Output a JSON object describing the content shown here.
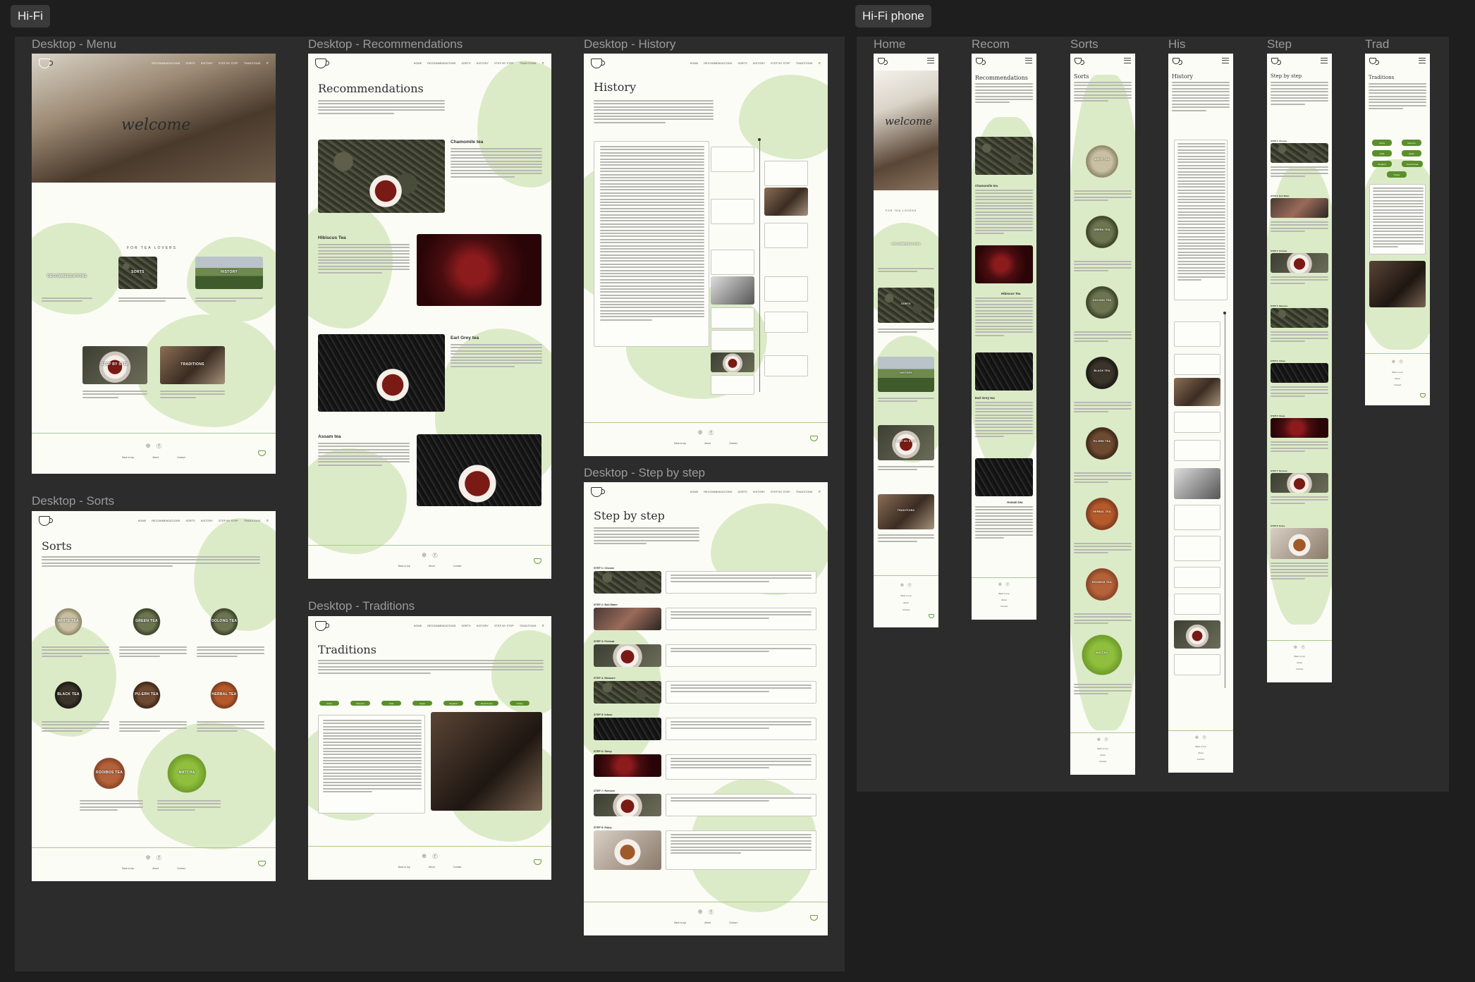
{
  "sections": {
    "hifi": "Hi-Fi",
    "phone": "Hi-Fi phone"
  },
  "frame_labels": {
    "menu": "Desktop - Menu",
    "recommendations": "Desktop - Recommendations",
    "history": "Desktop - History",
    "sorts": "Desktop - Sorts",
    "traditions": "Desktop - Traditions",
    "stepbystep": "Desktop - Step by step",
    "p_home": "Home",
    "p_recom": "Recom",
    "p_sorts": "Sorts",
    "p_his": "His",
    "p_step": "Step",
    "p_trad": "Trad"
  },
  "nav": {
    "home": "HOME",
    "recommendations": "RECOMMENDATIONS",
    "sorts": "SORTS",
    "history": "HISTORY",
    "stepbystep": "STEP BY STEP",
    "traditions": "TRADITIONS"
  },
  "menu_page": {
    "welcome": "welcome",
    "tagline": "FOR TEA LOVERS",
    "tiles": {
      "recommendations": "RECOMMENDATIONS",
      "sorts": "SORTS",
      "history": "HISTORY",
      "step": "STEP BY STEP",
      "traditions": "TRADITIONS"
    }
  },
  "recommendations_page": {
    "title": "Recommendations",
    "items": {
      "chamomile": "Chamomile tea",
      "hibiscus": "Hibiscus Tea",
      "earlgrey": "Earl Grey tea",
      "assam": "Assam tea"
    }
  },
  "history_page": {
    "title": "History"
  },
  "sorts_page": {
    "title": "Sorts",
    "teas": {
      "white": "WHITE TEA",
      "green": "GREEN TEA",
      "oolong": "OOLONG TEA",
      "black": "BLACK TEA",
      "puerh": "PU-ERH TEA",
      "herbal": "HERBAL TEA",
      "rooibos": "ROOIBOS TEA",
      "matcha": "MATCHA"
    }
  },
  "traditions_page": {
    "title": "Traditions",
    "countries": {
      "china": "China",
      "morocco": "Morocco",
      "india": "India",
      "japan": "Japan",
      "england": "England",
      "russia": "South Korea",
      "turkey": "Turkey"
    }
  },
  "step_page": {
    "title": "Step by step",
    "steps": {
      "s1": "STEP 1: Choose",
      "s2": "STEP 2: Boil Water",
      "s3": "STEP 3: Preheat",
      "s4": "STEP 4: Measure",
      "s5": "STEP 5: Infuse",
      "s6": "STEP 6: Steep",
      "s7": "STEP 7: Remove",
      "s8": "STEP 8: Enjoy"
    }
  },
  "footer": {
    "instagram": "◎",
    "facebook": "ⓕ",
    "link1": "Back to top",
    "link2": "About",
    "link3": "Contact"
  },
  "icons": {
    "logo": "teacup-logo-icon",
    "search": "search-icon",
    "menu": "hamburger-menu-icon"
  },
  "colors": {
    "canvas": "#1e1e1e",
    "section": "#2c2c2c",
    "page": "#fcfcf7",
    "blob": "#dcebc7",
    "accent": "#5b8f2c"
  }
}
